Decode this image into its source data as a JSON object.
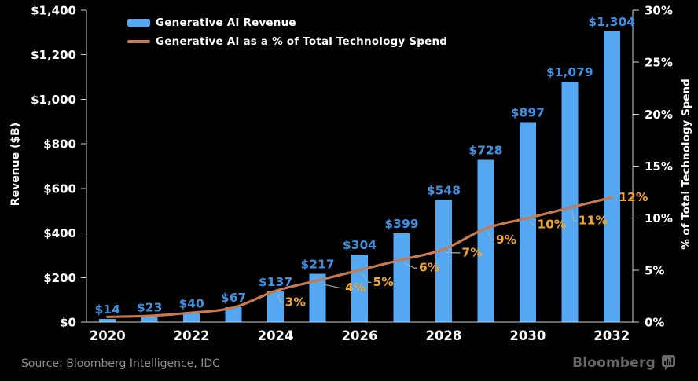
{
  "legend": [
    {
      "label": "Generative AI Revenue",
      "type": "bar"
    },
    {
      "label": "Generative AI as a % of Total Technology Spend",
      "type": "line"
    }
  ],
  "chart_data": {
    "type": "bar+line combo",
    "categories": [
      "2020",
      "2021",
      "2022",
      "2023",
      "2024",
      "2025",
      "2026",
      "2027",
      "2028",
      "2029",
      "2030",
      "2031",
      "2032"
    ],
    "series": [
      {
        "name": "Generative AI Revenue",
        "type": "bar",
        "axis": "left",
        "values": [
          14,
          23,
          40,
          67,
          137,
          217,
          304,
          399,
          548,
          728,
          897,
          1079,
          1304
        ],
        "value_labels": [
          "$14",
          "$23",
          "$40",
          "$67",
          "$137",
          "$217",
          "$304",
          "$399",
          "$548",
          "$728",
          "$897",
          "$1,079",
          "$1,304"
        ]
      },
      {
        "name": "Generative AI as a % of Total Technology Spend",
        "type": "line",
        "axis": "right",
        "values": [
          0.5,
          0.6,
          0.9,
          1.4,
          3,
          4,
          5,
          6,
          7,
          9,
          10,
          11,
          12
        ],
        "value_labels": [
          null,
          null,
          null,
          null,
          "3%",
          "4%",
          "5%",
          "6%",
          "7%",
          "9%",
          "10%",
          "11%",
          "12%"
        ]
      }
    ],
    "left_axis": {
      "title": "Revenue ($B)",
      "min": 0,
      "max": 1400,
      "tick_step": 200,
      "tick_labels": [
        "$0",
        "$200",
        "$400",
        "$600",
        "$800",
        "$1,000",
        "$1,200",
        "$1,400"
      ]
    },
    "right_axis": {
      "title": "% of Total Technology Spend",
      "min": 0,
      "max": 30,
      "tick_step": 5,
      "tick_labels": [
        "0%",
        "5%",
        "10%",
        "15%",
        "20%",
        "25%",
        "30%"
      ]
    },
    "x_tick_labels": [
      "2020",
      "2022",
      "2024",
      "2026",
      "2028",
      "2030",
      "2032"
    ],
    "grid": "off",
    "legend_position": "top-left-inside"
  },
  "colors": {
    "background": "#000000",
    "bar": "#54a8f2",
    "bar_label": "#3f90e0",
    "line": "#c67a4e",
    "pct_label": "#f5a528",
    "axis": "#cfcfcf",
    "tick_label": "#ffffff",
    "leader": "#a7adb2",
    "source_text": "#8d8d8d",
    "brand": "#666666"
  },
  "footer": {
    "source": "Source: Bloomberg Intelligence, IDC",
    "brand": "Bloomberg"
  }
}
